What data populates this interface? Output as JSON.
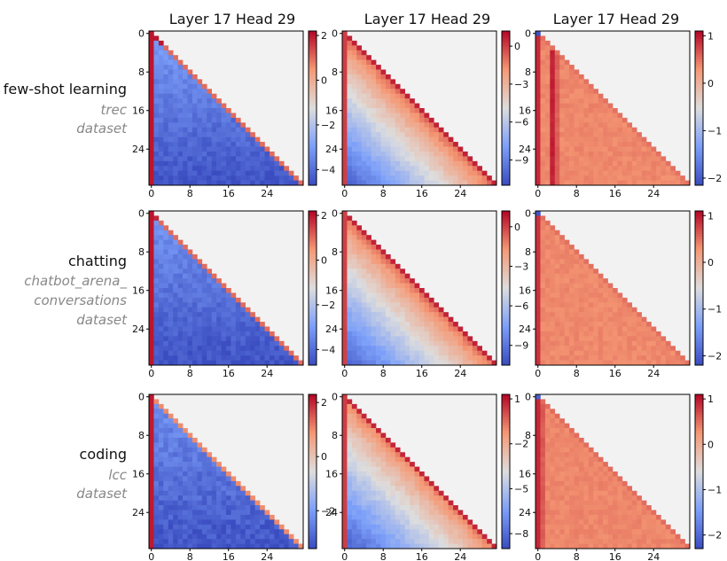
{
  "column_titles": [
    "Layer 17 Head 29",
    "Layer 17 Head 29",
    "Layer 17 Head 29"
  ],
  "rows": [
    {
      "title": "few-shot learning",
      "subtitle": [
        "trec",
        "dataset"
      ]
    },
    {
      "title": "chatting",
      "subtitle": [
        "chatbot_arena_",
        "conversations",
        "dataset"
      ]
    },
    {
      "title": "coding",
      "subtitle": [
        "lcc",
        "dataset"
      ]
    }
  ],
  "colors": {
    "background_cell": "#f2f2f2",
    "cmap": "coolwarm"
  },
  "chart_data": {
    "type": "heatmap",
    "grid_size": 32,
    "mask": "upper-triangle",
    "axis_ticks": [
      0,
      8,
      16,
      24
    ],
    "y_tick_labels": [
      "0",
      "8",
      "16",
      "24"
    ],
    "x_tick_labels": [
      "0",
      "8",
      "16",
      "24"
    ],
    "panels": [
      {
        "row": 0,
        "col": 0,
        "vmin": -4.7,
        "vmax": 2.2,
        "cbar_ticks": [
          2,
          0,
          -2,
          -4
        ],
        "pattern": "low",
        "sink_col": 0,
        "sink_val": 2.0,
        "diag_val": 1.0,
        "off_min": -4.6,
        "off_max": -2.2,
        "extra_cols": [],
        "hot_cells": [
          [
            1,
            1,
            2.0
          ],
          [
            2,
            2,
            2.0
          ],
          [
            2,
            3,
            1.6
          ]
        ]
      },
      {
        "row": 0,
        "col": 1,
        "vmin": -11,
        "vmax": 1.2,
        "cbar_ticks": [
          0,
          -3,
          -6,
          -9
        ],
        "pattern": "gradient",
        "sink_col": 0,
        "sink_val": 0.0,
        "diag_val": 0.6,
        "off_min": -10.5,
        "off_max": -0.5,
        "extra_cols": [],
        "hot_cells": []
      },
      {
        "row": 0,
        "col": 2,
        "vmin": -2.15,
        "vmax": 1.1,
        "cbar_ticks": [
          1,
          0,
          -1,
          -2
        ],
        "pattern": "flat",
        "sink_col": 0,
        "sink_val": 0.9,
        "diag_val": 0.5,
        "off_min": 0.3,
        "off_max": 0.45,
        "extra_cols": [
          [
            3,
            0.95
          ],
          [
            4,
            0.6
          ]
        ],
        "hot_cells": [
          [
            0,
            0,
            -2.1
          ]
        ]
      },
      {
        "row": 1,
        "col": 0,
        "vmin": -4.7,
        "vmax": 2.2,
        "cbar_ticks": [
          2,
          0,
          -2,
          -4
        ],
        "pattern": "low",
        "sink_col": 0,
        "sink_val": 2.0,
        "diag_val": 1.0,
        "off_min": -4.6,
        "off_max": -2.4,
        "extra_cols": [],
        "hot_cells": [
          [
            1,
            1,
            1.8
          ]
        ]
      },
      {
        "row": 1,
        "col": 1,
        "vmin": -10.5,
        "vmax": 1.2,
        "cbar_ticks": [
          0,
          -3,
          -6,
          -9
        ],
        "pattern": "gradient",
        "sink_col": 0,
        "sink_val": 0.0,
        "diag_val": 0.6,
        "off_min": -10.0,
        "off_max": -0.5,
        "extra_cols": [],
        "hot_cells": []
      },
      {
        "row": 1,
        "col": 2,
        "vmin": -2.2,
        "vmax": 1.1,
        "cbar_ticks": [
          1,
          0,
          -1,
          -2
        ],
        "pattern": "flat",
        "sink_col": 0,
        "sink_val": 0.85,
        "diag_val": 0.5,
        "off_min": 0.3,
        "off_max": 0.42,
        "extra_cols": [],
        "hot_cells": [
          [
            0,
            0,
            -2.1
          ]
        ]
      },
      {
        "row": 2,
        "col": 0,
        "vmin": -3.4,
        "vmax": 2.3,
        "cbar_ticks": [
          2,
          0,
          -2
        ],
        "pattern": "low",
        "sink_col": 0,
        "sink_val": 2.1,
        "diag_val": 1.0,
        "off_min": -3.3,
        "off_max": -1.6,
        "extra_cols": [],
        "hot_cells": []
      },
      {
        "row": 2,
        "col": 1,
        "vmin": -9.0,
        "vmax": 1.3,
        "cbar_ticks": [
          1,
          -2,
          -5,
          -8
        ],
        "pattern": "gradient",
        "sink_col": 0,
        "sink_val": 0.3,
        "diag_val": 0.7,
        "off_min": -8.6,
        "off_max": -0.6,
        "extra_cols": [],
        "hot_cells": []
      },
      {
        "row": 2,
        "col": 2,
        "vmin": -2.3,
        "vmax": 1.1,
        "cbar_ticks": [
          1,
          0,
          -1,
          -2
        ],
        "pattern": "flat",
        "sink_col": 0,
        "sink_val": 0.9,
        "diag_val": 0.5,
        "off_min": 0.28,
        "off_max": 0.42,
        "extra_cols": [
          [
            1,
            0.6
          ]
        ],
        "hot_cells": [
          [
            0,
            0,
            -2.1
          ]
        ]
      }
    ]
  }
}
